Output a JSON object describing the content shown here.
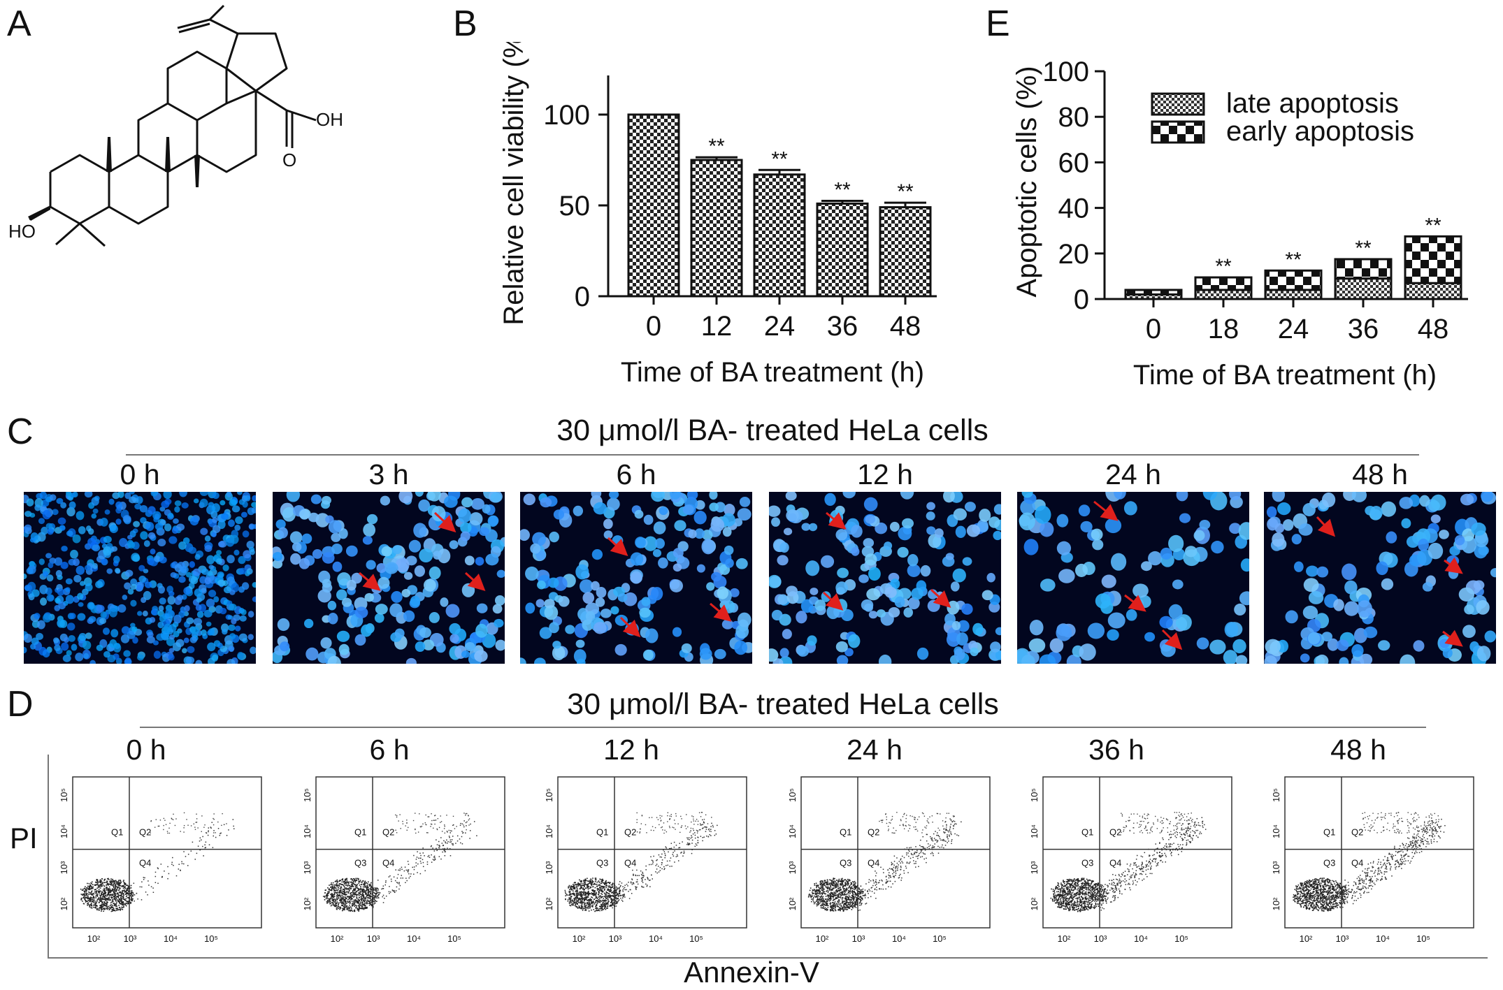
{
  "panels": {
    "A": {
      "letter": "A",
      "atoms": {
        "hydroxyl_top": "OH",
        "carbonyl_o": "O",
        "hydroxyl_left": "HO"
      }
    },
    "B": {
      "letter": "B"
    },
    "C": {
      "letter": "C",
      "title": "30 μmol/l BA- treated HeLa cells",
      "times": [
        "0 h",
        "3 h",
        "6 h",
        "12 h",
        "24 h",
        "48 h"
      ],
      "arrow_color": "#e0201c"
    },
    "D": {
      "letter": "D",
      "title": "30 μmol/l BA- treated HeLa cells",
      "times": [
        "0 h",
        "6 h",
        "12 h",
        "24 h",
        "36 h",
        "48 h"
      ],
      "ylabel": "PI",
      "xlabel": "Annexin-V",
      "quadrants": [
        "Q1",
        "Q2",
        "Q3",
        "Q4"
      ],
      "ticks": [
        "10²",
        "10³",
        "10⁴",
        "10⁵"
      ]
    },
    "E": {
      "letter": "E"
    }
  },
  "chart_data": [
    {
      "type": "bar",
      "categories": [
        "0",
        "12",
        "24",
        "36",
        "48"
      ],
      "values": [
        100,
        75,
        67,
        51,
        49
      ],
      "errors": [
        0,
        1.5,
        2.5,
        1.5,
        2.5
      ],
      "annotations": [
        "",
        "**",
        "**",
        "**",
        "**"
      ],
      "xlabel": "Time of BA treatment (h)",
      "ylabel": "Relative cell viability (%)",
      "yticks": [
        "0",
        "50",
        "100"
      ],
      "ylim": [
        0,
        120
      ]
    },
    {
      "type": "bar",
      "stacked": true,
      "categories": [
        "0",
        "18",
        "24",
        "36",
        "48"
      ],
      "series": [
        {
          "name": "late apoptosis",
          "values": [
            2,
            4,
            4,
            9,
            7
          ]
        },
        {
          "name": "early apoptosis",
          "values": [
            2,
            5.5,
            8.5,
            8.5,
            20.5
          ]
        }
      ],
      "annotations": [
        "",
        "**",
        "**",
        "**",
        "**"
      ],
      "xlabel": "Time of BA treatment (h)",
      "ylabel": "Apoptotic cells (%)",
      "yticks": [
        "0",
        "20",
        "40",
        "60",
        "80",
        "100"
      ],
      "ylim": [
        0,
        100
      ],
      "legend": "top-right"
    }
  ]
}
